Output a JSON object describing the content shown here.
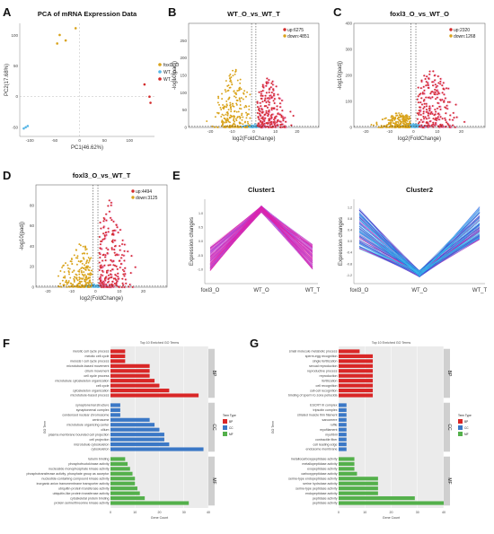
{
  "panel_letters": {
    "a": "A",
    "b": "B",
    "c": "C",
    "d": "D",
    "e": "E",
    "f": "F",
    "g": "G"
  },
  "colors": {
    "yellow": "#d9a31b",
    "blue": "#59b7e6",
    "red": "#d32b2b",
    "pink": "#f080c8",
    "magenta": "#e020a8",
    "navy": "#2a2fd6",
    "cyan": "#2fc4ee",
    "bp": "#d92626",
    "cc": "#3b78c6",
    "mf": "#54b04b"
  },
  "chart_data": [
    {
      "id": "A",
      "type": "scatter",
      "title": "PCA of mRNA Expression Data",
      "xlabel": "PC1(46.62%)",
      "ylabel": "PC2(17.68%)",
      "xlim": [
        -120,
        150
      ],
      "ylim": [
        -65,
        120
      ],
      "xticks": [
        -100,
        -50,
        0,
        50,
        100
      ],
      "yticks": [
        -50,
        0,
        50,
        100
      ],
      "legend_title": "",
      "series": [
        {
          "name": "foxl3_O",
          "color": "#d9a31b",
          "points": [
            [
              -40,
              101
            ],
            [
              -8,
              112
            ],
            [
              -28,
              92
            ],
            [
              -45,
              87
            ]
          ]
        },
        {
          "name": "WT_O",
          "color": "#59b7e6",
          "points": [
            [
              -112,
              -52
            ],
            [
              -108,
              -50
            ],
            [
              -104,
              -48
            ]
          ]
        },
        {
          "name": "WT_T",
          "color": "#d32b2b",
          "points": [
            [
              140,
              0
            ],
            [
              142,
              -10
            ],
            [
              130,
              20
            ]
          ]
        }
      ]
    },
    {
      "id": "B",
      "type": "scatter",
      "title": "WT_O_vs_WT_T",
      "xlabel": "log2(FoldChange)",
      "ylabel": "-log10(padj)",
      "xlim": [
        -30,
        30
      ],
      "ylim": [
        0,
        300
      ],
      "xticks": [
        -20,
        -10,
        0,
        10,
        20
      ],
      "yticks": [
        0,
        50,
        100,
        150,
        200,
        250
      ],
      "legend": [
        {
          "label": "up:6275",
          "color": "#d32b2b"
        },
        {
          "label": "down:4851",
          "color": "#d9a31b"
        }
      ],
      "shape": {
        "seed": 11,
        "down_peak": 175,
        "up_peak": 150,
        "down_center": -9,
        "up_center": 7
      }
    },
    {
      "id": "C",
      "type": "scatter",
      "title": "foxl3_O_vs_WT_O",
      "xlabel": "log2(FoldChange)",
      "ylabel": "-log10(padj)",
      "xlim": [
        -25,
        30
      ],
      "ylim": [
        0,
        400
      ],
      "xticks": [
        -20,
        -10,
        0,
        10,
        20
      ],
      "yticks": [
        0,
        100,
        200,
        300,
        400
      ],
      "legend": [
        {
          "label": "up:2320",
          "color": "#d32b2b"
        },
        {
          "label": "down:1268",
          "color": "#d9a31b"
        }
      ],
      "shape": {
        "seed": 23,
        "down_peak": 60,
        "up_peak": 260,
        "down_center": -6,
        "up_center": 8
      }
    },
    {
      "id": "D",
      "type": "scatter",
      "title": "foxl3_O_vs_WT_T",
      "xlabel": "log2(FoldChange)",
      "ylabel": "-log10(padj)",
      "xlim": [
        -25,
        30
      ],
      "ylim": [
        0,
        100
      ],
      "xticks": [
        -20,
        -10,
        0,
        10,
        20
      ],
      "yticks": [
        0,
        20,
        40,
        60,
        80
      ],
      "legend": [
        {
          "label": "up:4494",
          "color": "#d32b2b"
        },
        {
          "label": "down:3125",
          "color": "#d9a31b"
        }
      ],
      "shape": {
        "seed": 37,
        "down_peak": 45,
        "up_peak": 88,
        "down_center": -6,
        "up_center": 6
      }
    },
    {
      "id": "E1",
      "type": "line",
      "title": "Cluster1",
      "ylabel": "Expression changes",
      "categories": [
        "foxl3_O",
        "WT_O",
        "WT_T"
      ],
      "ylim": [
        -1.5,
        1.5
      ],
      "yticks": [
        -1.0,
        -0.5,
        0.0,
        0.5,
        1.0
      ],
      "series_summary": {
        "mean": [
          -0.6,
          1.15,
          -0.55
        ],
        "spread": [
          0.45,
          0.12,
          0.45
        ]
      }
    },
    {
      "id": "E2",
      "type": "line",
      "title": "Cluster2",
      "ylabel": "Expression changes",
      "categories": [
        "foxl3_O",
        "WT_O",
        "WT_T"
      ],
      "ylim": [
        -1.5,
        1.5
      ],
      "yticks": [
        -1.2,
        -0.8,
        -0.4,
        0.0,
        0.4,
        0.8,
        1.2
      ],
      "series_summary": {
        "mean": [
          0.45,
          -1.15,
          0.65
        ],
        "spread": [
          0.75,
          0.12,
          0.6
        ]
      }
    },
    {
      "id": "F",
      "type": "bar",
      "title": "Top 10 Enriched GO Terms",
      "xlabel": "Gene Count",
      "ylabel": "GO Term",
      "xlim": [
        0,
        40
      ],
      "xticks": [
        0,
        10,
        20,
        30,
        40
      ],
      "legend_title": "Term Type",
      "legend": [
        "BP",
        "CC",
        "MF"
      ],
      "groups": [
        {
          "name": "BP",
          "terms": [
            "meiotic cell cycle process",
            "meiotic cell cycle",
            "meiosis I cell cycle process",
            "microtubule-based movement",
            "cilium movement",
            "cell cycle process",
            "microtubule cytoskeleton organization",
            "cell cycle",
            "cytoskeleton organization",
            "microtubule-based process"
          ],
          "values": [
            6,
            6,
            6,
            16,
            16,
            16,
            18,
            20,
            24,
            36
          ]
        },
        {
          "name": "CC",
          "terms": [
            "synaptonemal structure",
            "synaptonemal complex",
            "condensed nuclear chromosome",
            "centrosome",
            "microtubule organizing center",
            "cilium",
            "plasma membrane bounded cell projection",
            "cell projection",
            "microtubule cytoskeleton",
            "cytoskeleton"
          ],
          "values": [
            4,
            4,
            4,
            16,
            18,
            20,
            22,
            22,
            24,
            38
          ]
        },
        {
          "name": "MF",
          "terms": [
            "tubulin binding",
            "phosphofructokinase activity",
            "nucleoside monophosphate kinase activity",
            "phosphotransferase activity, phosphate group as acceptor",
            "nucleotide-containing compound kinase activity",
            "inorganic anion transmembrane transporter activity",
            "ubiquitin-protein transferase activity",
            "ubiquitin-like protein transferase activity",
            "cytoskeletal protein binding",
            "protein serine/threonine kinase activity"
          ],
          "values": [
            6,
            7,
            8,
            9,
            10,
            10,
            11,
            12,
            14,
            32
          ]
        }
      ]
    },
    {
      "id": "G",
      "type": "bar",
      "title": "Top 10 Enriched GO Terms",
      "xlabel": "Gene Count",
      "ylabel": "GO Term",
      "xlim": [
        0,
        40
      ],
      "xticks": [
        0,
        10,
        20,
        30,
        40
      ],
      "legend_title": "Term Type",
      "legend": [
        "BP",
        "CC",
        "MF"
      ],
      "groups": [
        {
          "name": "BP",
          "terms": [
            "small molecule metabolic process",
            "sperm-egg recognition",
            "single fertilization",
            "sexual reproduction",
            "reproductive process",
            "reproduction",
            "fertilization",
            "cell recognition",
            "cell-cell recognition",
            "binding of sperm to zona pellucida"
          ],
          "values": [
            8,
            13,
            13,
            13,
            13,
            13,
            13,
            13,
            13,
            13
          ]
        },
        {
          "name": "CC",
          "terms": [
            "ESCRT III complex",
            "tripsotin complex",
            "striated muscle thin filament",
            "sarcomere",
            "ruffle",
            "myofilament",
            "myofibril",
            "contractile fiber",
            "cell leading edge",
            "endosome membrane"
          ],
          "values": [
            3,
            3,
            3,
            3,
            3,
            3,
            3,
            3,
            3,
            3
          ]
        },
        {
          "name": "MF",
          "terms": [
            "metallocarboxypeptidase activity",
            "metallopeptidase activity",
            "exopeptidase activity",
            "carboxypeptidase activity",
            "serine-type endopeptidase activity",
            "serine hydrolase activity",
            "serine-type peptidase activity",
            "endopeptidase activity",
            "peptidase activity",
            "peptidase activity"
          ],
          "values": [
            6,
            6,
            6,
            7,
            15,
            15,
            15,
            15,
            29,
            40
          ]
        }
      ]
    }
  ]
}
